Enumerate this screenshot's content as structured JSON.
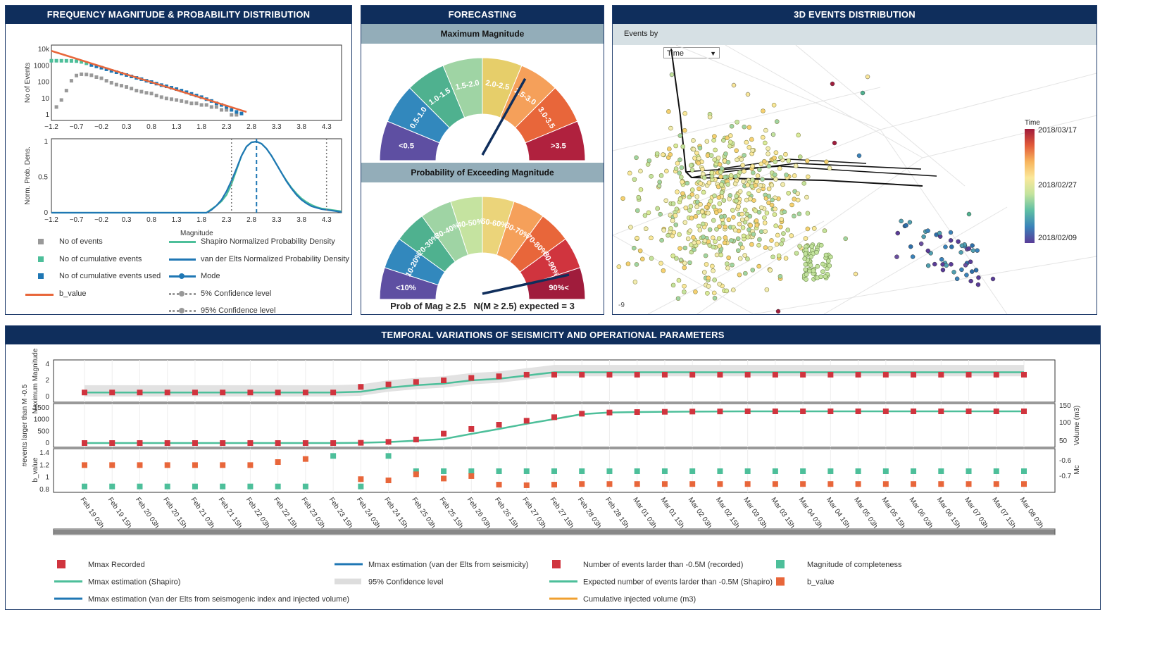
{
  "panels": {
    "freq": {
      "title": "FREQUENCY MAGNITUDE & PROBABILITY DISTRIBUTION"
    },
    "forecast": {
      "title": "FORECASTING",
      "max_mag_title": "Maximum Magnitude",
      "prob_title": "Probability of Exceeding Magnitude",
      "prob_caption": "Prob of Mag ≥ 2.5   N(M ≥ 2.5) expected = 3"
    },
    "events3d": {
      "title": "3D EVENTS DISTRIBUTION",
      "events_by_label": "Events by",
      "events_by_value": "Time",
      "corner_label": "-9",
      "colorbar_title": "Time",
      "colorbar_ticks": [
        "2018/03/17",
        "2018/02/27",
        "2018/02/09"
      ]
    },
    "temporal": {
      "title": "TEMPORAL VARIATIONS OF SEISMICITY AND OPERATIONAL PARAMETERS"
    }
  },
  "colors": {
    "header": "#0f2e5c",
    "subheader": "#93adb9",
    "orange": "#e8663a",
    "teal": "#4dbf9a",
    "blue": "#1f77b4",
    "red": "#d0343e",
    "gray": "#999999"
  },
  "freq_legend": {
    "heading": "Magnitude",
    "left": [
      "No of events",
      "No of cumulative events",
      "No of cumulative events used",
      "b_value"
    ],
    "right": [
      "Shapiro Normalized Probability Density",
      "van der Elts Normalized Probability Density",
      "Mode",
      "5% Confidence level",
      "95% Confidence level"
    ]
  },
  "gauges": {
    "max_magnitude": {
      "labels": [
        "<0.5",
        "0.5-1.0",
        "1.0-1.5",
        "1.5-2.0",
        "2.0-2.5",
        "2.5-3.0",
        "3.0-3.5",
        ">3.5"
      ],
      "needle_fraction": 0.66
    },
    "probability": {
      "labels": [
        "<10%",
        "10-20%",
        "20-30%",
        "30-40%",
        "40-50%",
        "50-60%",
        "60-70%",
        "70-80%",
        "80-90%",
        "90%<"
      ],
      "needle_fraction": 0.93
    }
  },
  "temporal_axes": {
    "top_ylabel": "Maximum Magnitude",
    "mid_ylabel": "#events larger than M -0.5",
    "mid_y2label": "Volume (m3)",
    "bot_ylabel": "b_value",
    "bot_y2label": "Mc",
    "top_ticks": [
      "4",
      "2",
      "0"
    ],
    "mid_ticks": [
      "1500",
      "1000",
      "500",
      "0"
    ],
    "mid_y2_ticks": [
      "150",
      "100",
      "50"
    ],
    "bot_ticks": [
      "1.4",
      "1.2",
      "1",
      "0.8"
    ],
    "bot_y2_ticks": [
      "-0.6",
      "-0.7"
    ]
  },
  "temporal_legend": [
    {
      "label": "Mmax Recorded",
      "kind": "square",
      "color": "#d0343e"
    },
    {
      "label": "Mmax estimation (Shapiro)",
      "kind": "line",
      "color": "#4dbf9a"
    },
    {
      "label": "Mmax estimation (van der Elts from seismogenic index and injected volume)",
      "kind": "line",
      "color": "#1f77b4"
    },
    {
      "label": "Mmax estimation (van der Elts from seismicity)",
      "kind": "line",
      "color": "#1f77b4"
    },
    {
      "label": "95% Confidence level",
      "kind": "band",
      "color": "#dddddd"
    },
    {
      "label": "Number of events larder than -0.5M (recorded)",
      "kind": "square",
      "color": "#d0343e"
    },
    {
      "label": "Expected number of events larder than -0.5M (Shapiro)",
      "kind": "line",
      "color": "#4dbf9a"
    },
    {
      "label": "Cumulative injected volume (m3)",
      "kind": "line",
      "color": "#f0a030"
    },
    {
      "label": "Magnitude of completeness",
      "kind": "square",
      "color": "#4dbf9a"
    },
    {
      "label": "b_value",
      "kind": "square",
      "color": "#e8663a"
    }
  ],
  "chart_data": [
    {
      "type": "scatter",
      "id": "frequency-magnitude",
      "ylabel": "No of Events",
      "log_y": true,
      "xlim": [
        -1.2,
        4.6
      ],
      "x_ticks": [
        -1.2,
        -0.7,
        -0.2,
        0.3,
        0.8,
        1.3,
        1.8,
        2.3,
        2.8,
        3.3,
        3.8,
        4.3
      ],
      "y_tick_labels": [
        "10k",
        "1000",
        "100",
        "10",
        "1"
      ],
      "series": [
        {
          "name": "No of events",
          "x": [
            -1.1,
            -1.0,
            -0.9,
            -0.8,
            -0.7,
            -0.6,
            -0.5,
            -0.4,
            -0.3,
            -0.2,
            -0.1,
            0.0,
            0.1,
            0.2,
            0.3,
            0.4,
            0.5,
            0.6,
            0.7,
            0.8,
            0.9,
            1.0,
            1.1,
            1.2,
            1.3,
            1.4,
            1.5,
            1.6,
            1.7,
            1.8,
            1.9,
            2.0,
            2.1,
            2.2,
            2.3,
            2.4,
            2.5
          ],
          "y": [
            3,
            8,
            30,
            120,
            250,
            300,
            290,
            260,
            200,
            170,
            120,
            90,
            70,
            60,
            50,
            40,
            30,
            26,
            22,
            20,
            15,
            12,
            10,
            9,
            8,
            7,
            6,
            5,
            5,
            4,
            4,
            3,
            3,
            2,
            2,
            1,
            1
          ]
        },
        {
          "name": "No of cumulative events",
          "x": [
            -1.2,
            -1.1,
            -1.0,
            -0.9,
            -0.8,
            -0.7,
            -0.6,
            -0.5
          ],
          "y": [
            2000,
            2000,
            1990,
            1980,
            1950,
            1900,
            1700,
            1400
          ]
        },
        {
          "name": "No of cumulative events used",
          "x": [
            -0.4,
            -0.3,
            -0.2,
            -0.1,
            0.0,
            0.1,
            0.2,
            0.3,
            0.4,
            0.5,
            0.6,
            0.7,
            0.8,
            0.9,
            1.0,
            1.1,
            1.2,
            1.3,
            1.4,
            1.5,
            1.6,
            1.7,
            1.8,
            1.9,
            2.0,
            2.1,
            2.2,
            2.3,
            2.4,
            2.5,
            2.6
          ],
          "y": [
            1100,
            900,
            750,
            600,
            480,
            400,
            330,
            270,
            220,
            180,
            150,
            120,
            100,
            80,
            65,
            55,
            45,
            37,
            30,
            24,
            19,
            15,
            12,
            9,
            7,
            5,
            4,
            3,
            2,
            1.5,
            1.2
          ]
        },
        {
          "name": "b_value",
          "kind": "line",
          "x": [
            -1.2,
            2.7
          ],
          "y": [
            8000,
            1.5
          ]
        }
      ]
    },
    {
      "type": "line",
      "id": "probability-density",
      "ylabel": "Norm. Prob. Dens.",
      "xlim": [
        -1.2,
        4.6
      ],
      "ylim": [
        0,
        1
      ],
      "x_ticks": [
        -1.2,
        -0.7,
        -0.2,
        0.3,
        0.8,
        1.3,
        1.8,
        2.3,
        2.8,
        3.3,
        3.8,
        4.3
      ],
      "y_ticks": [
        0,
        0.5,
        1
      ],
      "series": [
        {
          "name": "Shapiro Normalized Probability Density",
          "x": [
            -1.2,
            1.9,
            2.0,
            2.1,
            2.2,
            2.3,
            2.4,
            2.5,
            2.6,
            2.7,
            2.8,
            2.9,
            3.0,
            3.1,
            3.2,
            3.3,
            3.4,
            3.5,
            3.6,
            3.7,
            3.8,
            3.9,
            4.0,
            4.1,
            4.2,
            4.3,
            4.4,
            4.6
          ],
          "y": [
            0,
            0.0,
            0.05,
            0.1,
            0.16,
            0.25,
            0.4,
            0.6,
            0.8,
            0.93,
            0.99,
            1.0,
            0.97,
            0.9,
            0.8,
            0.68,
            0.56,
            0.45,
            0.35,
            0.27,
            0.2,
            0.15,
            0.11,
            0.08,
            0.06,
            0.05,
            0.04,
            0.02
          ]
        },
        {
          "name": "van der Elts Normalized Probability Density",
          "x": [
            -1.2,
            1.9,
            2.0,
            2.1,
            2.2,
            2.3,
            2.4,
            2.5,
            2.6,
            2.7,
            2.8,
            2.9,
            3.0,
            3.1,
            3.2,
            3.3,
            3.4,
            3.5,
            3.6,
            3.7,
            3.8,
            3.9,
            4.0,
            4.1,
            4.2,
            4.3,
            4.4,
            4.6
          ],
          "y": [
            0,
            0.0,
            0.04,
            0.1,
            0.18,
            0.3,
            0.45,
            0.62,
            0.8,
            0.93,
            0.99,
            1.0,
            0.97,
            0.9,
            0.8,
            0.68,
            0.56,
            0.44,
            0.34,
            0.25,
            0.18,
            0.13,
            0.09,
            0.07,
            0.05,
            0.04,
            0.03,
            0.01
          ]
        },
        {
          "name": "Mode",
          "kind": "vline",
          "x": 2.9
        },
        {
          "name": "5% Confidence level",
          "kind": "vline",
          "x": 2.4
        },
        {
          "name": "95% Confidence level",
          "kind": "vline",
          "x": 4.3
        }
      ]
    },
    {
      "type": "scatter",
      "id": "3d-events",
      "note_axes": "3D",
      "series": [
        {
          "name": "events"
        }
      ]
    },
    {
      "type": "line",
      "id": "temporal",
      "categories": [
        "Feb 19 03h",
        "Feb 19 15h",
        "Feb 20 03h",
        "Feb 20 15h",
        "Feb 21 03h",
        "Feb 21 15h",
        "Feb 22 03h",
        "Feb 22 15h",
        "Feb 23 03h",
        "Feb 23 15h",
        "Feb 24 03h",
        "Feb 24 15h",
        "Feb 25 03h",
        "Feb 25 15h",
        "Feb 26 03h",
        "Feb 26 15h",
        "Feb 27 03h",
        "Feb 27 15h",
        "Feb 28 03h",
        "Feb 28 15h",
        "Mar 01 03h",
        "Mar 01 15h",
        "Mar 02 03h",
        "Mar 02 15h",
        "Mar 03 03h",
        "Mar 03 15h",
        "Mar 04 03h",
        "Mar 04 15h",
        "Mar 05 03h",
        "Mar 05 15h",
        "Mar 06 03h",
        "Mar 06 15h",
        "Mar 07 03h",
        "Mar 07 15h",
        "Mar 08 03h"
      ],
      "series": [
        {
          "name": "Mmax Recorded",
          "values": [
            0.5,
            0.5,
            0.5,
            0.5,
            0.5,
            0.5,
            0.5,
            0.5,
            0.5,
            0.5,
            1.2,
            1.5,
            1.8,
            2.0,
            2.3,
            2.5,
            2.7,
            2.7,
            2.7,
            2.7,
            2.7,
            2.7,
            2.7,
            2.7,
            2.7,
            2.7,
            2.7,
            2.7,
            2.7,
            2.7,
            2.7,
            2.7,
            2.7,
            2.7,
            2.7
          ]
        },
        {
          "name": "Mmax estimation (Shapiro)",
          "values": [
            0.5,
            0.5,
            0.5,
            0.5,
            0.5,
            0.5,
            0.5,
            0.5,
            0.5,
            0.5,
            0.6,
            1.1,
            1.4,
            1.6,
            2.0,
            2.2,
            2.6,
            3.0,
            3.0,
            3.0,
            3.0,
            3.0,
            3.0,
            3.0,
            3.0,
            3.0,
            3.0,
            3.0,
            3.0,
            3.0,
            3.0,
            3.0,
            3.0,
            3.0,
            3.0
          ]
        },
        {
          "name": "Number of events larder than -0.5M (recorded)",
          "values": [
            0,
            0,
            0,
            0,
            0,
            0,
            0,
            0,
            0,
            0,
            10,
            50,
            150,
            400,
            600,
            780,
            950,
            1100,
            1250,
            1300,
            1320,
            1330,
            1340,
            1345,
            1350,
            1350,
            1350,
            1350,
            1350,
            1350,
            1350,
            1350,
            1350,
            1350,
            1350
          ]
        },
        {
          "name": "Expected number of events larder than -0.5M (Shapiro)",
          "values": [
            0,
            0,
            0,
            0,
            0,
            0,
            0,
            0,
            0,
            0,
            10,
            40,
            100,
            170,
            390,
            600,
            820,
            1020,
            1230,
            1300,
            1320,
            1330,
            1340,
            1345,
            1350,
            1350,
            1350,
            1350,
            1350,
            1350,
            1350,
            1350,
            1350,
            1350,
            1350
          ]
        },
        {
          "name": "Magnitude of completeness",
          "values": [
            0.85,
            0.85,
            0.85,
            0.85,
            0.85,
            0.85,
            0.85,
            0.85,
            0.85,
            1.35,
            0.85,
            1.35,
            1.1,
            1.1,
            1.1,
            1.1,
            1.1,
            1.1,
            1.1,
            1.1,
            1.1,
            1.1,
            1.1,
            1.1,
            1.1,
            1.1,
            1.1,
            1.1,
            1.1,
            1.1,
            1.1,
            1.1,
            1.1,
            1.1,
            1.1
          ]
        },
        {
          "name": "b_value",
          "values": [
            1.2,
            1.2,
            1.2,
            1.2,
            1.2,
            1.2,
            1.2,
            1.25,
            1.3,
            null,
            0.97,
            0.95,
            1.05,
            0.98,
            1.02,
            0.88,
            0.87,
            0.88,
            0.89,
            0.89,
            0.89,
            0.89,
            0.89,
            0.89,
            0.89,
            0.89,
            0.89,
            0.89,
            0.89,
            0.89,
            0.89,
            0.89,
            0.89,
            0.89,
            0.89
          ]
        }
      ]
    }
  ]
}
